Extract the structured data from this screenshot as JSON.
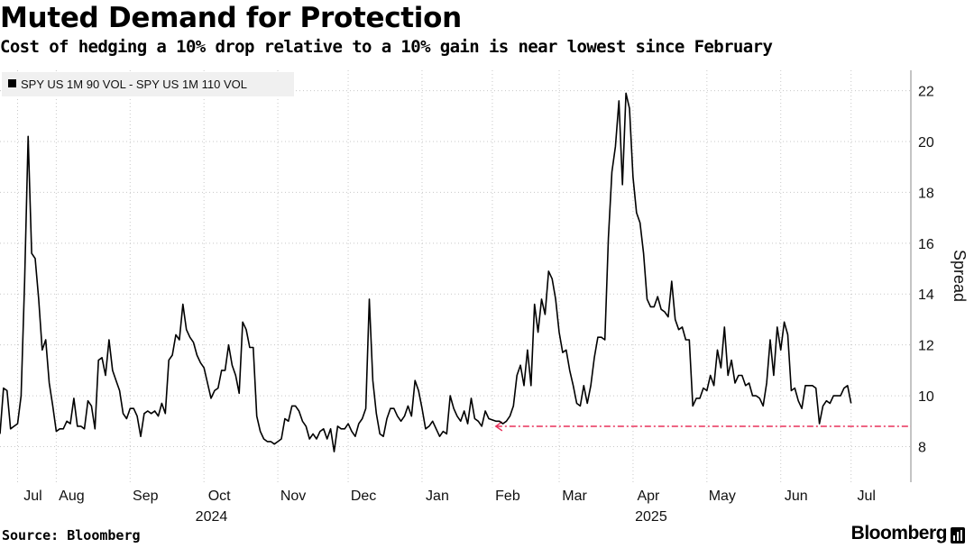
{
  "title": "Muted Demand for Protection",
  "subtitle": "Cost of hedging a 10% drop relative to a 10% gain is near lowest since February",
  "footer": {
    "source": "Source: Bloomberg",
    "brand": "Bloomberg"
  },
  "colors": {
    "line": "#000000",
    "reference": "#e8305a",
    "grid": "#c8c8c8",
    "legend_bg": "#f0f0f0"
  },
  "chart_data": {
    "type": "line",
    "title": "Muted Demand for Protection",
    "subtitle": "Cost of hedging a 10% drop relative to a 10% gain is near lowest since February",
    "xlabel": "",
    "ylabel": "Spread",
    "ylim": [
      6.6,
      22.8
    ],
    "yticks": [
      8,
      10,
      12,
      14,
      16,
      18,
      20,
      22
    ],
    "xlim": [
      0,
      259
    ],
    "grid": true,
    "legend": {
      "position": "top-left",
      "entries": [
        {
          "name": "SPY US 1M 90 VOL - SPY US 1M 110 VOL",
          "color": "#000000"
        }
      ]
    },
    "x_ticks": [
      {
        "label": "Jul",
        "x": 5
      },
      {
        "label": "Aug",
        "x": 16
      },
      {
        "label": "Sep",
        "x": 37
      },
      {
        "label": "Oct",
        "x": 58
      },
      {
        "label": "Nov",
        "x": 79
      },
      {
        "label": "Dec",
        "x": 99
      },
      {
        "label": "Jan",
        "x": 120
      },
      {
        "label": "Feb",
        "x": 140
      },
      {
        "label": "Mar",
        "x": 159
      },
      {
        "label": "Apr",
        "x": 180
      },
      {
        "label": "May",
        "x": 201
      },
      {
        "label": "Jun",
        "x": 222
      },
      {
        "label": "Jul",
        "x": 242
      }
    ],
    "year_labels": [
      {
        "label": "2024",
        "x": 55
      },
      {
        "label": "2025",
        "x": 180
      }
    ],
    "reference_line": {
      "y": 8.8,
      "x_start": 141,
      "x_end": 259,
      "style": "dash-dot",
      "arrow": "left"
    },
    "series": [
      {
        "name": "SPY US 1M 90 VOL - SPY US 1M 110 VOL",
        "points": [
          [
            0,
            8.5
          ],
          [
            1,
            10.3
          ],
          [
            2,
            10.2
          ],
          [
            3,
            8.7
          ],
          [
            4,
            8.8
          ],
          [
            5,
            8.9
          ],
          [
            6,
            10
          ],
          [
            7,
            14.5
          ],
          [
            8,
            20.2
          ],
          [
            9,
            15.6
          ],
          [
            10,
            15.4
          ],
          [
            11,
            13.8
          ],
          [
            12,
            11.8
          ],
          [
            13,
            12.2
          ],
          [
            14,
            10.5
          ],
          [
            15,
            9.6
          ],
          [
            16,
            8.6
          ],
          [
            17,
            8.7
          ],
          [
            18,
            8.7
          ],
          [
            19,
            9
          ],
          [
            20,
            8.9
          ],
          [
            21,
            9.9
          ],
          [
            22,
            8.8
          ],
          [
            23,
            8.8
          ],
          [
            24,
            8.7
          ],
          [
            25,
            9.8
          ],
          [
            26,
            9.6
          ],
          [
            27,
            8.7
          ],
          [
            28,
            11.4
          ],
          [
            29,
            11.5
          ],
          [
            30,
            10.8
          ],
          [
            31,
            12.2
          ],
          [
            32,
            11
          ],
          [
            33,
            10.6
          ],
          [
            34,
            10.2
          ],
          [
            35,
            9.3
          ],
          [
            36,
            9.1
          ],
          [
            37,
            9.5
          ],
          [
            38,
            9.5
          ],
          [
            39,
            9.2
          ],
          [
            40,
            8.4
          ],
          [
            41,
            9.3
          ],
          [
            42,
            9.4
          ],
          [
            43,
            9.3
          ],
          [
            44,
            9.4
          ],
          [
            45,
            9.2
          ],
          [
            46,
            9.7
          ],
          [
            47,
            9.3
          ],
          [
            48,
            11.4
          ],
          [
            49,
            11.6
          ],
          [
            50,
            12.4
          ],
          [
            51,
            12.2
          ],
          [
            52,
            13.6
          ],
          [
            53,
            12.6
          ],
          [
            54,
            12.3
          ],
          [
            55,
            12.1
          ],
          [
            56,
            11.6
          ],
          [
            57,
            11.3
          ],
          [
            58,
            11.1
          ],
          [
            59,
            10.5
          ],
          [
            60,
            9.9
          ],
          [
            61,
            10.2
          ],
          [
            62,
            10.3
          ],
          [
            63,
            11
          ],
          [
            64,
            11
          ],
          [
            65,
            12
          ],
          [
            66,
            11.2
          ],
          [
            67,
            10.8
          ],
          [
            68,
            10.1
          ],
          [
            69,
            12.9
          ],
          [
            70,
            12.6
          ],
          [
            71,
            11.9
          ],
          [
            72,
            11.9
          ],
          [
            73,
            9.2
          ],
          [
            74,
            8.6
          ],
          [
            75,
            8.3
          ],
          [
            76,
            8.2
          ],
          [
            77,
            8.2
          ],
          [
            78,
            8.1
          ],
          [
            79,
            8.2
          ],
          [
            80,
            8.3
          ],
          [
            81,
            9.1
          ],
          [
            82,
            9
          ],
          [
            83,
            9.6
          ],
          [
            84,
            9.6
          ],
          [
            85,
            9.4
          ],
          [
            86,
            9
          ],
          [
            87,
            8.8
          ],
          [
            88,
            8.3
          ],
          [
            89,
            8.5
          ],
          [
            90,
            8.3
          ],
          [
            91,
            8.6
          ],
          [
            92,
            8.7
          ],
          [
            93,
            8.3
          ],
          [
            94,
            8.7
          ],
          [
            95,
            7.8
          ],
          [
            96,
            8.8
          ],
          [
            97,
            8.7
          ],
          [
            98,
            8.7
          ],
          [
            99,
            8.9
          ],
          [
            100,
            8.6
          ],
          [
            101,
            8.4
          ],
          [
            102,
            8.9
          ],
          [
            103,
            9.1
          ],
          [
            104,
            9.5
          ],
          [
            105,
            13.8
          ],
          [
            106,
            10.6
          ],
          [
            107,
            9.3
          ],
          [
            108,
            8.5
          ],
          [
            109,
            8.4
          ],
          [
            110,
            9.1
          ],
          [
            111,
            9.5
          ],
          [
            112,
            9.5
          ],
          [
            113,
            9.2
          ],
          [
            114,
            9
          ],
          [
            115,
            9.2
          ],
          [
            116,
            9.6
          ],
          [
            117,
            9.2
          ],
          [
            118,
            10.6
          ],
          [
            119,
            10.2
          ],
          [
            120,
            9.5
          ],
          [
            121,
            8.7
          ],
          [
            122,
            8.8
          ],
          [
            123,
            9
          ],
          [
            124,
            8.7
          ],
          [
            125,
            8.4
          ],
          [
            126,
            8.6
          ],
          [
            127,
            8.5
          ],
          [
            128,
            10
          ],
          [
            129,
            9.5
          ],
          [
            130,
            9.2
          ],
          [
            131,
            9
          ],
          [
            132,
            9.4
          ],
          [
            133,
            8.9
          ],
          [
            134,
            9.9
          ],
          [
            135,
            9.1
          ],
          [
            136,
            9
          ],
          [
            137,
            8.8
          ],
          [
            138,
            9.4
          ],
          [
            139,
            9.1
          ],
          [
            140,
            9.05
          ],
          [
            141,
            9.0
          ],
          [
            142,
            9.0
          ],
          [
            143,
            8.9
          ],
          [
            144,
            9.0
          ],
          [
            145,
            9.2
          ],
          [
            146,
            9.6
          ],
          [
            147,
            10.8
          ],
          [
            148,
            11.2
          ],
          [
            149,
            10.4
          ],
          [
            150,
            11.8
          ],
          [
            151,
            10.4
          ],
          [
            152,
            13.6
          ],
          [
            153,
            12.5
          ],
          [
            154,
            13.8
          ],
          [
            155,
            13.2
          ],
          [
            156,
            14.9
          ],
          [
            157,
            14.6
          ],
          [
            158,
            13.8
          ],
          [
            159,
            12.5
          ],
          [
            160,
            11.7
          ],
          [
            161,
            11.8
          ],
          [
            162,
            11.0
          ],
          [
            163,
            10.4
          ],
          [
            164,
            9.7
          ],
          [
            165,
            9.6
          ],
          [
            166,
            10.4
          ],
          [
            167,
            9.7
          ],
          [
            168,
            10.4
          ],
          [
            169,
            11.5
          ],
          [
            170,
            12.3
          ],
          [
            171,
            12.3
          ],
          [
            172,
            12.2
          ],
          [
            173,
            16.2
          ],
          [
            174,
            18.8
          ],
          [
            175,
            19.8
          ],
          [
            176,
            21.6
          ],
          [
            177,
            18.3
          ],
          [
            178,
            21.9
          ],
          [
            179,
            21.3
          ],
          [
            180,
            18.6
          ],
          [
            181,
            17.2
          ],
          [
            182,
            16.8
          ],
          [
            183,
            15.6
          ],
          [
            184,
            13.8
          ],
          [
            185,
            13.5
          ],
          [
            186,
            13.5
          ],
          [
            187,
            13.9
          ],
          [
            188,
            13.4
          ],
          [
            189,
            13.3
          ],
          [
            190,
            13.1
          ],
          [
            191,
            14.5
          ],
          [
            192,
            13.0
          ],
          [
            193,
            12.6
          ],
          [
            194,
            12.7
          ],
          [
            195,
            12.2
          ],
          [
            196,
            12.2
          ],
          [
            197,
            9.6
          ],
          [
            198,
            9.9
          ],
          [
            199,
            9.9
          ],
          [
            200,
            10.3
          ],
          [
            201,
            10.2
          ],
          [
            202,
            10.8
          ],
          [
            203,
            10.4
          ],
          [
            204,
            11.8
          ],
          [
            205,
            11.1
          ],
          [
            206,
            12.7
          ],
          [
            207,
            10.8
          ],
          [
            208,
            11.4
          ],
          [
            209,
            10.5
          ],
          [
            210,
            10.8
          ],
          [
            211,
            10.8
          ],
          [
            212,
            10.4
          ],
          [
            213,
            10.5
          ],
          [
            214,
            10
          ],
          [
            215,
            10
          ],
          [
            216,
            9.9
          ],
          [
            217,
            9.6
          ],
          [
            218,
            10.5
          ],
          [
            219,
            12.2
          ],
          [
            220,
            10.8
          ],
          [
            221,
            12.7
          ],
          [
            222,
            11.8
          ],
          [
            223,
            12.9
          ],
          [
            224,
            12.4
          ],
          [
            225,
            10.2
          ],
          [
            226,
            10.3
          ],
          [
            227,
            9.8
          ],
          [
            228,
            9.5
          ],
          [
            229,
            10.4
          ],
          [
            230,
            10.4
          ],
          [
            231,
            10.4
          ],
          [
            232,
            10.3
          ],
          [
            233,
            8.9
          ],
          [
            234,
            9.6
          ],
          [
            235,
            9.8
          ],
          [
            236,
            9.7
          ],
          [
            237,
            10.0
          ],
          [
            238,
            10.0
          ],
          [
            239,
            10.0
          ],
          [
            240,
            10.3
          ],
          [
            241,
            10.4
          ],
          [
            242,
            9.7
          ]
        ]
      }
    ]
  }
}
